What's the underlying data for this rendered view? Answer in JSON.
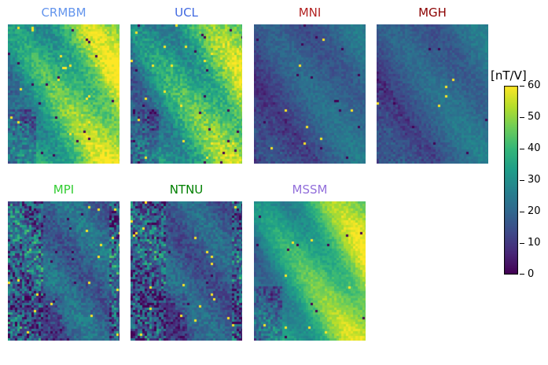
{
  "chart_data": {
    "type": "heatmap",
    "colormap": "viridis",
    "colorbar": {
      "label": "[nT/V]",
      "range": [
        0,
        60
      ],
      "ticks": [
        0,
        10,
        20,
        30,
        40,
        50,
        60
      ]
    },
    "panels": [
      {
        "title": "CRMBM",
        "title_color": "#6495ed",
        "mean_level": 38,
        "pattern": "high-right",
        "noise": 0.55
      },
      {
        "title": "UCL",
        "title_color": "#4169e1",
        "mean_level": 34,
        "pattern": "high-right",
        "noise": 0.6
      },
      {
        "title": "MNI",
        "title_color": "#b22222",
        "mean_level": 18,
        "pattern": "low-diagonal",
        "noise": 0.35
      },
      {
        "title": "MGH",
        "title_color": "#8b0000",
        "mean_level": 19,
        "pattern": "low-diagonal",
        "noise": 0.35
      },
      {
        "title": "MPI",
        "title_color": "#32cd32",
        "mean_level": 20,
        "pattern": "low-noisy",
        "noise": 0.6
      },
      {
        "title": "NTNU",
        "title_color": "#008000",
        "mean_level": 18,
        "pattern": "low-noisy",
        "noise": 0.55
      },
      {
        "title": "MSSM",
        "title_color": "#9370db",
        "mean_level": 36,
        "pattern": "high-right",
        "noise": 0.35
      }
    ]
  }
}
